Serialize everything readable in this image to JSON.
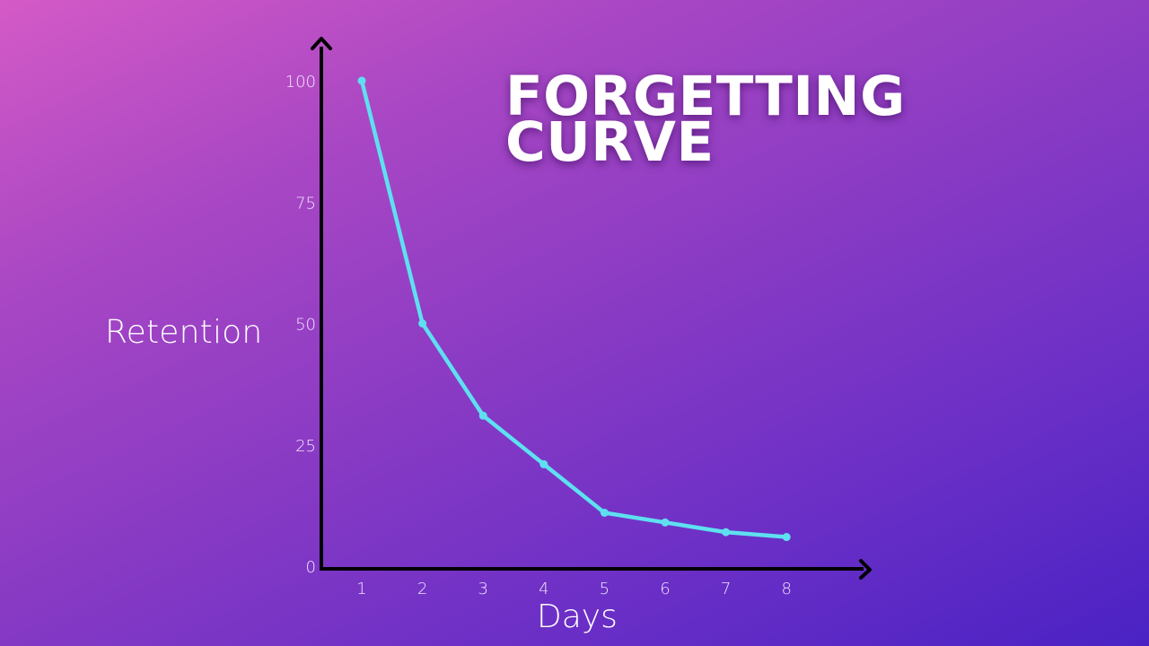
{
  "chart_data": {
    "type": "line",
    "title": "FORGETTING CURVE",
    "xlabel": "Days",
    "ylabel": "Retention",
    "x": [
      1,
      2,
      3,
      4,
      5,
      6,
      7,
      8
    ],
    "y_ticks": [
      0,
      25,
      50,
      75,
      100
    ],
    "x_ticks": [
      1,
      2,
      3,
      4,
      5,
      6,
      7,
      8
    ],
    "ylim": [
      0,
      100
    ],
    "series": [
      {
        "values": [
          100,
          50,
          31,
          21,
          11,
          9,
          7,
          6
        ]
      }
    ],
    "grid": false,
    "colors": {
      "line": "#5ee0f0",
      "axes": "#000000",
      "text": "#ffffff"
    }
  }
}
